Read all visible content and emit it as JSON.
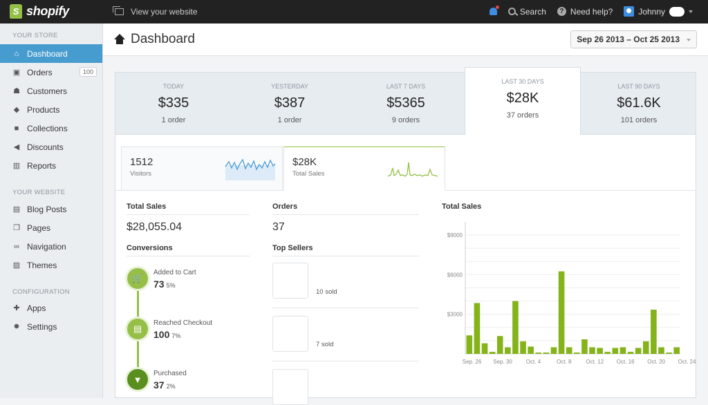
{
  "topbar": {
    "brand": "shopify",
    "view_website": "View your website",
    "search": "Search",
    "help": "Need help?",
    "user": "Johnny"
  },
  "sidebar": {
    "sections": [
      {
        "title": "YOUR STORE",
        "items": [
          {
            "label": "Dashboard",
            "icon": "home-icon",
            "active": true
          },
          {
            "label": "Orders",
            "icon": "orders-icon",
            "badge": "100"
          },
          {
            "label": "Customers",
            "icon": "customers-icon"
          },
          {
            "label": "Products",
            "icon": "tag-icon"
          },
          {
            "label": "Collections",
            "icon": "collections-icon"
          },
          {
            "label": "Discounts",
            "icon": "megaphone-icon"
          },
          {
            "label": "Reports",
            "icon": "bar-chart-icon"
          }
        ]
      },
      {
        "title": "YOUR WEBSITE",
        "items": [
          {
            "label": "Blog Posts",
            "icon": "blog-icon"
          },
          {
            "label": "Pages",
            "icon": "pages-icon"
          },
          {
            "label": "Navigation",
            "icon": "link-icon"
          },
          {
            "label": "Themes",
            "icon": "image-icon"
          }
        ]
      },
      {
        "title": "CONFIGURATION",
        "items": [
          {
            "label": "Apps",
            "icon": "apps-icon"
          },
          {
            "label": "Settings",
            "icon": "gear-icon"
          }
        ]
      }
    ]
  },
  "header": {
    "title": "Dashboard",
    "date_range": "Sep 26 2013 – Oct 25 2013"
  },
  "stats": [
    {
      "label": "TODAY",
      "value": "$335",
      "orders": "1 order"
    },
    {
      "label": "YESTERDAY",
      "value": "$387",
      "orders": "1 order"
    },
    {
      "label": "LAST 7 DAYS",
      "value": "$5365",
      "orders": "9 orders"
    },
    {
      "label": "LAST 30 DAYS",
      "value": "$28K",
      "orders": "37 orders",
      "active": true
    },
    {
      "label": "LAST 90 DAYS",
      "value": "$61.6K",
      "orders": "101 orders"
    }
  ],
  "tabs": [
    {
      "value": "1512",
      "label": "Visitors"
    },
    {
      "value": "$28K",
      "label": "Total Sales"
    }
  ],
  "sales": {
    "title": "Total Sales",
    "value": "$28,055.04",
    "conversions_title": "Conversions",
    "conversions": [
      {
        "name": "Added to Cart",
        "value": "73",
        "pct": "5%",
        "icon": "cart-icon"
      },
      {
        "name": "Reached Checkout",
        "value": "100",
        "pct": "7%",
        "icon": "register-icon"
      },
      {
        "name": "Purchased",
        "value": "37",
        "pct": "2%",
        "icon": "purchased-icon"
      }
    ]
  },
  "orders": {
    "title": "Orders",
    "value": "37",
    "top_sellers_title": "Top Sellers",
    "top_sellers": [
      {
        "sold": "10 sold"
      },
      {
        "sold": "7 sold"
      },
      {
        "sold": ""
      }
    ]
  },
  "colors": {
    "accent": "#479ccf",
    "green": "#96bf48",
    "topbar": "#222222"
  },
  "chart_data": {
    "type": "bar",
    "title": "Total Sales",
    "ylim": [
      0,
      10000
    ],
    "yticks": [
      "$3000",
      "$6000",
      "$9000"
    ],
    "ytick_values": [
      3000,
      6000,
      9000
    ],
    "xticks": [
      "Sep. 26",
      "Sep. 30",
      "Oct. 4",
      "Oct. 8",
      "Oct. 12",
      "Oct. 16",
      "Oct. 20",
      "Oct. 24"
    ],
    "values": [
      1400,
      3850,
      800,
      150,
      1350,
      500,
      4000,
      950,
      550,
      100,
      100,
      500,
      6250,
      500,
      100,
      1100,
      500,
      450,
      150,
      450,
      500,
      150,
      450,
      950,
      3350,
      500,
      100,
      500
    ],
    "grid": true,
    "color": "#84b31a"
  }
}
